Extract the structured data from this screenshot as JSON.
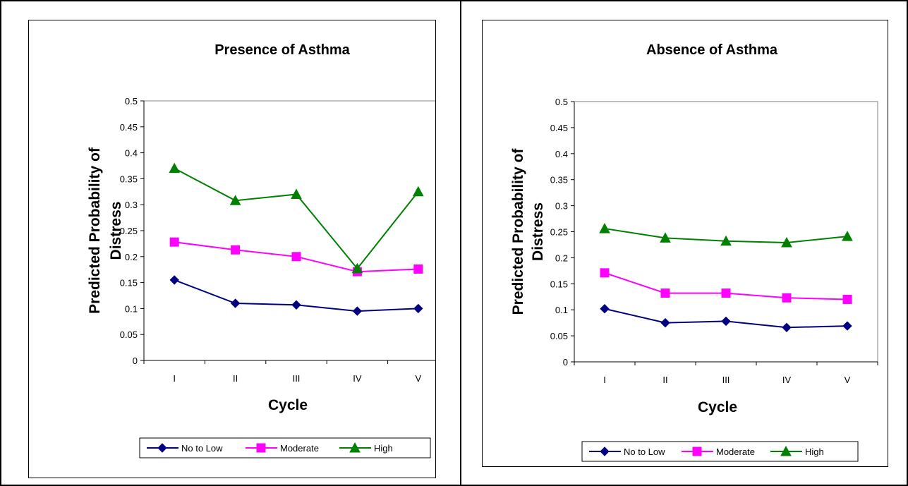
{
  "chart_data": [
    {
      "type": "line",
      "title": "Presence of Asthma",
      "xlabel": "Cycle",
      "ylabel": "Predicted Probability of Distress",
      "ylabel_lines": [
        "Predicted Probability of",
        "Distress"
      ],
      "categories": [
        "I",
        "II",
        "III",
        "IV",
        "V"
      ],
      "ylim": [
        0,
        0.5
      ],
      "yticks": [
        "0",
        "0.05",
        "0.1",
        "0.15",
        "0.2",
        "0.25",
        "0.3",
        "0.35",
        "0.4",
        "0.45",
        "0.5"
      ],
      "grid": false,
      "legend_position": "bottom",
      "series": [
        {
          "name": "No to Low",
          "marker": "diamond",
          "color": "#000080",
          "values": [
            0.155,
            0.11,
            0.107,
            0.095,
            0.1
          ]
        },
        {
          "name": "Moderate",
          "marker": "square",
          "color": "#FF00FF",
          "values": [
            0.228,
            0.213,
            0.2,
            0.171,
            0.176
          ]
        },
        {
          "name": "High",
          "marker": "triangle",
          "color": "#008000",
          "values": [
            0.37,
            0.308,
            0.32,
            0.177,
            0.325
          ]
        }
      ]
    },
    {
      "type": "line",
      "title": "Absence of Asthma",
      "xlabel": "Cycle",
      "ylabel": "Predicted Probability of Distress",
      "ylabel_lines": [
        "Predicted Probability of",
        "Distress"
      ],
      "categories": [
        "I",
        "II",
        "III",
        "IV",
        "V"
      ],
      "ylim": [
        0,
        0.5
      ],
      "yticks": [
        "0",
        "0.05",
        "0.1",
        "0.15",
        "0.2",
        "0.25",
        "0.3",
        "0.35",
        "0.4",
        "0.45",
        "0.5"
      ],
      "grid": false,
      "legend_position": "bottom",
      "series": [
        {
          "name": "No to Low",
          "marker": "diamond",
          "color": "#000080",
          "values": [
            0.102,
            0.075,
            0.078,
            0.066,
            0.069
          ]
        },
        {
          "name": "Moderate",
          "marker": "square",
          "color": "#FF00FF",
          "values": [
            0.171,
            0.132,
            0.132,
            0.123,
            0.12
          ]
        },
        {
          "name": "High",
          "marker": "triangle",
          "color": "#008000",
          "values": [
            0.256,
            0.238,
            0.232,
            0.229,
            0.241
          ]
        }
      ]
    }
  ]
}
